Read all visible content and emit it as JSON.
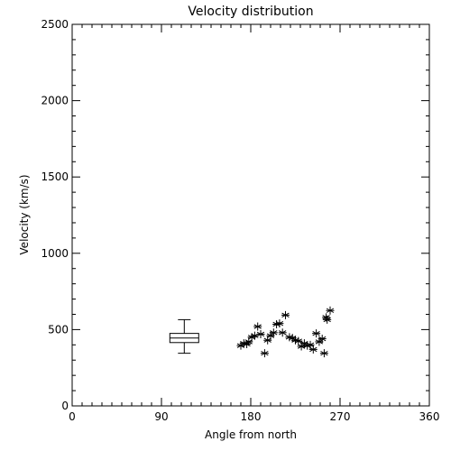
{
  "chart_data": {
    "type": "scatter",
    "title": "Velocity distribution",
    "xlabel": "Angle from north",
    "ylabel": "Velocity (km/s)",
    "xlim": [
      0,
      360
    ],
    "ylim": [
      0,
      2500
    ],
    "xticks": [
      0,
      90,
      180,
      270,
      360
    ],
    "yticks": [
      0,
      500,
      1000,
      1500,
      2000,
      2500
    ],
    "grid": false,
    "marker": "asterisk",
    "points": [
      [
        170,
        395
      ],
      [
        173,
        410
      ],
      [
        176,
        405
      ],
      [
        178,
        420
      ],
      [
        181,
        450
      ],
      [
        184,
        460
      ],
      [
        187,
        520
      ],
      [
        190,
        470
      ],
      [
        194,
        345
      ],
      [
        197,
        430
      ],
      [
        200,
        460
      ],
      [
        203,
        480
      ],
      [
        206,
        535
      ],
      [
        209,
        540
      ],
      [
        212,
        480
      ],
      [
        215,
        595
      ],
      [
        219,
        450
      ],
      [
        222,
        445
      ],
      [
        225,
        430
      ],
      [
        228,
        425
      ],
      [
        231,
        390
      ],
      [
        234,
        410
      ],
      [
        237,
        395
      ],
      [
        240,
        400
      ],
      [
        243,
        370
      ],
      [
        246,
        475
      ],
      [
        249,
        420
      ],
      [
        252,
        440
      ],
      [
        254,
        345
      ],
      [
        256,
        580
      ],
      [
        257,
        565
      ],
      [
        260,
        625
      ]
    ],
    "boxplot": {
      "x": 113,
      "min": 345,
      "q1": 415,
      "median": 445,
      "q3": 475,
      "max": 565
    }
  }
}
